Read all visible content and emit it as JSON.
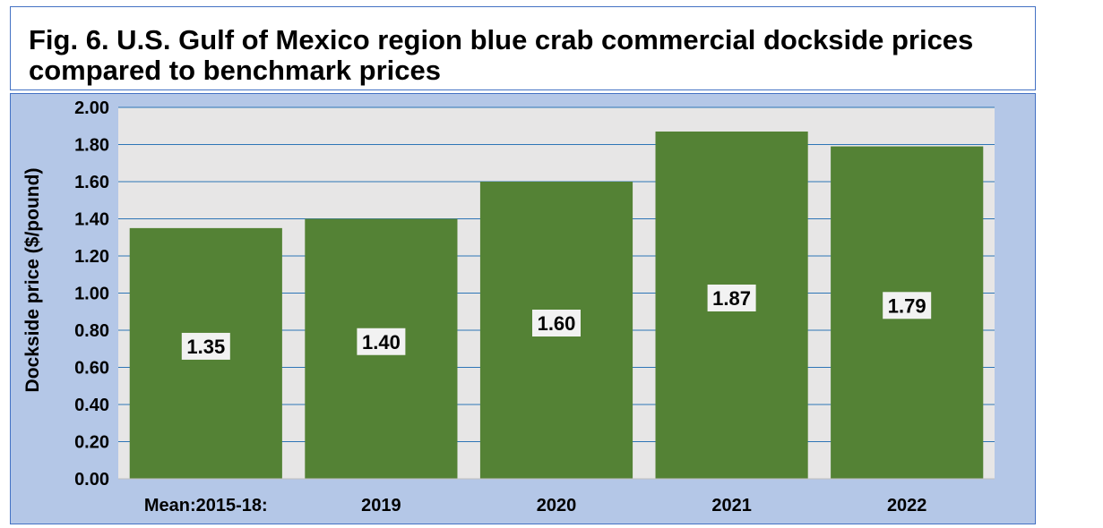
{
  "title": "Fig. 6. U.S. Gulf of Mexico region blue crab commercial dockside prices compared to benchmark prices",
  "colors": {
    "bar": "#548235",
    "plot_bg": "#e7e6e6",
    "chart_bg": "#b4c7e7",
    "grid": "#2e75b6",
    "label_bg": "#f2f2f2"
  },
  "chart_data": {
    "type": "bar",
    "title": "Fig. 6. U.S. Gulf of Mexico region blue crab commercial dockside prices compared to benchmark prices",
    "categories": [
      "Mean:2015-18:",
      "2019",
      "2020",
      "2021",
      "2022"
    ],
    "values": [
      1.35,
      1.4,
      1.6,
      1.87,
      1.79
    ],
    "data_labels": [
      "1.35",
      "1.40",
      "1.60",
      "1.87",
      "1.79"
    ],
    "xlabel": "",
    "ylabel": "Dockside price ($/pound)",
    "ylim": [
      0,
      2.0
    ],
    "yticks": [
      "0.00",
      "0.20",
      "0.40",
      "0.60",
      "0.80",
      "1.00",
      "1.20",
      "1.40",
      "1.60",
      "1.80",
      "2.00"
    ],
    "grid": true,
    "legend": "none"
  }
}
